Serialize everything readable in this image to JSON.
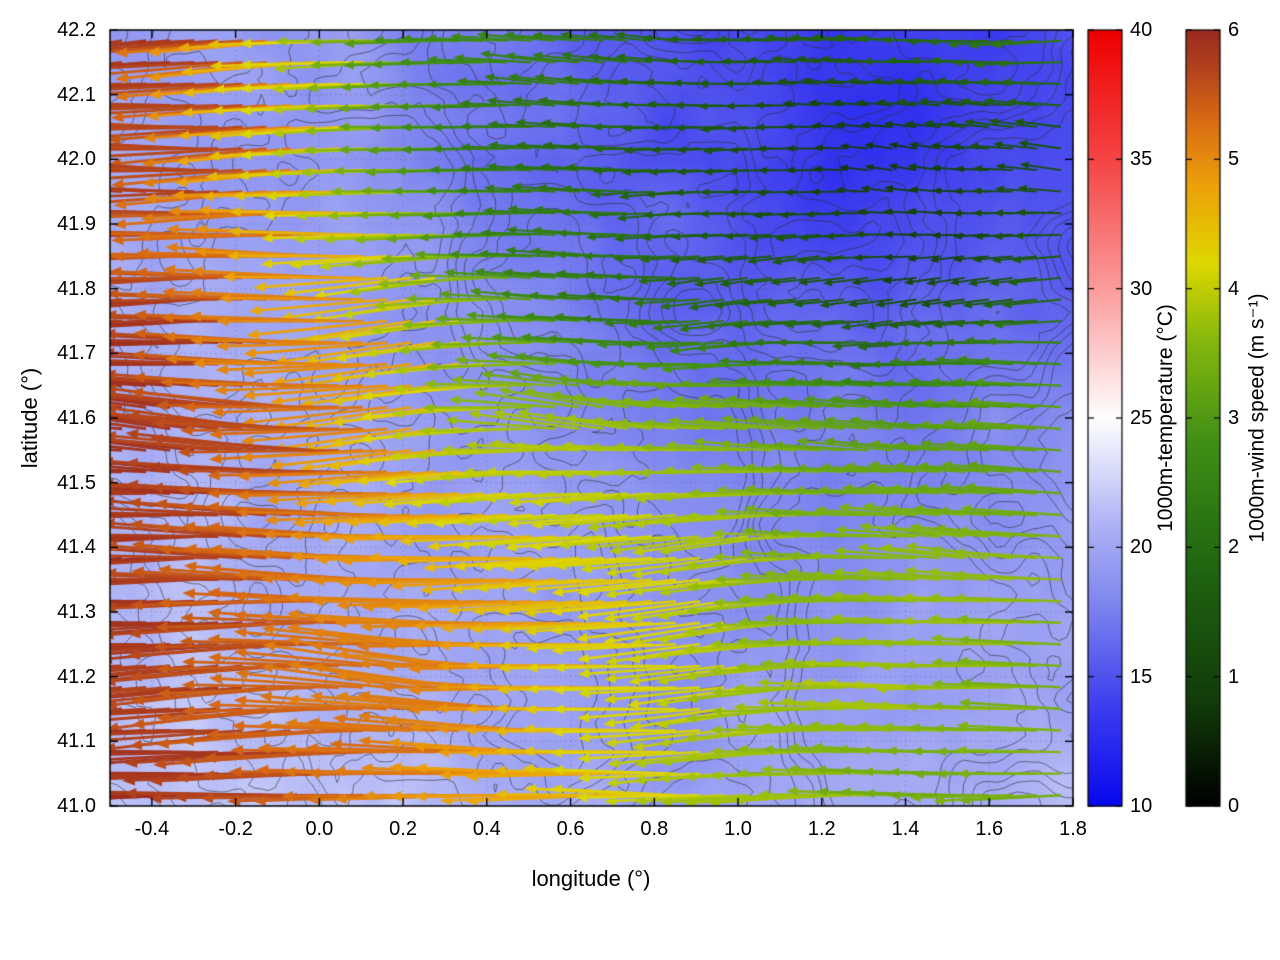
{
  "figure": {
    "background": "#ffffff",
    "plot_border_color": "#000000"
  },
  "chart_data": {
    "type": "heatmap",
    "subtype": "wind vector field over temperature shading with terrain contour lines",
    "title": "",
    "xlabel": "longitude (°)",
    "ylabel": "latitude (°)",
    "xlim": [
      -0.5,
      1.8
    ],
    "ylim": [
      41.0,
      42.2
    ],
    "grid": "faint dotted gridlines at tick positions",
    "legend": "two vertical colorbars on right side",
    "xticks": [
      {
        "value": -0.4,
        "label": "-0.4"
      },
      {
        "value": -0.2,
        "label": "-0.2"
      },
      {
        "value": 0.0,
        "label": "0.0"
      },
      {
        "value": 0.2,
        "label": "0.2"
      },
      {
        "value": 0.4,
        "label": "0.4"
      },
      {
        "value": 0.6,
        "label": "0.6"
      },
      {
        "value": 0.8,
        "label": "0.8"
      },
      {
        "value": 1.0,
        "label": "1.0"
      },
      {
        "value": 1.2,
        "label": "1.2"
      },
      {
        "value": 1.4,
        "label": "1.4"
      },
      {
        "value": 1.6,
        "label": "1.6"
      },
      {
        "value": 1.8,
        "label": "1.8"
      }
    ],
    "yticks": [
      {
        "value": 41.0,
        "label": "41.0"
      },
      {
        "value": 41.1,
        "label": "41.1"
      },
      {
        "value": 41.2,
        "label": "41.2"
      },
      {
        "value": 41.3,
        "label": "41.3"
      },
      {
        "value": 41.4,
        "label": "41.4"
      },
      {
        "value": 41.5,
        "label": "41.5"
      },
      {
        "value": 41.6,
        "label": "41.6"
      },
      {
        "value": 41.7,
        "label": "41.7"
      },
      {
        "value": 41.8,
        "label": "41.8"
      },
      {
        "value": 41.9,
        "label": "41.9"
      },
      {
        "value": 42.0,
        "label": "42.0"
      },
      {
        "value": 42.1,
        "label": "42.1"
      },
      {
        "value": 42.2,
        "label": "42.2"
      }
    ],
    "temperature": {
      "label": "1000m-temperature (°C)",
      "range": [
        10,
        40
      ],
      "cticks": [
        {
          "value": 10,
          "label": "10"
        },
        {
          "value": 15,
          "label": "15"
        },
        {
          "value": 20,
          "label": "20"
        },
        {
          "value": 25,
          "label": "25"
        },
        {
          "value": 30,
          "label": "30"
        },
        {
          "value": 35,
          "label": "35"
        },
        {
          "value": 40,
          "label": "40"
        }
      ],
      "colormap": [
        {
          "v": 10,
          "c": "#0808f0"
        },
        {
          "v": 14,
          "c": "#4040ee"
        },
        {
          "v": 18,
          "c": "#8289ef"
        },
        {
          "v": 21,
          "c": "#b0b5f5"
        },
        {
          "v": 23,
          "c": "#d9dcfa"
        },
        {
          "v": 25,
          "c": "#ffffff"
        },
        {
          "v": 30,
          "c": "#fc9c9c"
        },
        {
          "v": 35,
          "c": "#f54545"
        },
        {
          "v": 40,
          "c": "#ee0000"
        }
      ],
      "grid_rows_north_to_south": [
        [
          20.0,
          20.0,
          19.5,
          18.5,
          17.5,
          17.0,
          16.0,
          15.0,
          14.5,
          14.0,
          13.5,
          13.5,
          14.0
        ],
        [
          20.0,
          20.0,
          19.5,
          18.5,
          17.5,
          16.5,
          15.5,
          15.0,
          14.0,
          13.5,
          13.5,
          14.0,
          14.5
        ],
        [
          20.5,
          20.5,
          20.0,
          19.5,
          19.0,
          18.0,
          17.0,
          16.0,
          15.5,
          15.0,
          15.0,
          15.5,
          16.0
        ],
        [
          20.5,
          20.5,
          20.5,
          20.0,
          19.5,
          19.0,
          18.5,
          18.0,
          17.5,
          17.5,
          17.5,
          18.0,
          18.5
        ],
        [
          21.0,
          21.0,
          20.5,
          20.5,
          20.0,
          19.5,
          19.0,
          18.5,
          18.5,
          18.5,
          19.0,
          19.0,
          19.5
        ],
        [
          21.0,
          21.5,
          21.0,
          20.5,
          20.5,
          20.0,
          19.5,
          19.0,
          19.0,
          19.5,
          19.5,
          20.0,
          20.0
        ],
        [
          21.5,
          22.0,
          21.5,
          21.0,
          21.0,
          20.5,
          20.0,
          19.5,
          20.0,
          20.0,
          20.5,
          20.5,
          21.0
        ]
      ]
    },
    "wind": {
      "label": "1000m-wind speed (m s⁻¹)",
      "range": [
        0,
        6
      ],
      "direction": "arrows point westward (easterly flow), strongest in the west/southwest",
      "cticks": [
        {
          "value": 0,
          "label": "0"
        },
        {
          "value": 1,
          "label": "1"
        },
        {
          "value": 2,
          "label": "2"
        },
        {
          "value": 3,
          "label": "3"
        },
        {
          "value": 4,
          "label": "4"
        },
        {
          "value": 5,
          "label": "5"
        },
        {
          "value": 6,
          "label": "6"
        }
      ],
      "colormap": [
        {
          "v": 0,
          "c": "#000000"
        },
        {
          "v": 0.8,
          "c": "#123c0a"
        },
        {
          "v": 1.8,
          "c": "#1f6410"
        },
        {
          "v": 2.8,
          "c": "#3f8f16"
        },
        {
          "v": 3.6,
          "c": "#86b80e"
        },
        {
          "v": 4.2,
          "c": "#ded800"
        },
        {
          "v": 4.8,
          "c": "#eda10a"
        },
        {
          "v": 5.3,
          "c": "#d96c14"
        },
        {
          "v": 5.7,
          "c": "#b4431d"
        },
        {
          "v": 6,
          "c": "#9a2a20"
        }
      ],
      "speed_grid_north_to_south": [
        [
          5.8,
          5.7,
          5.3,
          4.4,
          3.2,
          2.6,
          2.2,
          1.9,
          1.7,
          1.6,
          1.7,
          2.0,
          2.3
        ],
        [
          5.8,
          5.7,
          5.4,
          4.6,
          3.4,
          2.6,
          2.1,
          1.7,
          1.3,
          1.0,
          0.8,
          0.9,
          1.2
        ],
        [
          5.8,
          5.8,
          5.5,
          5.0,
          4.2,
          3.4,
          2.6,
          2.0,
          1.6,
          1.3,
          1.2,
          1.4,
          1.8
        ],
        [
          5.9,
          5.8,
          5.6,
          5.2,
          4.6,
          4.1,
          3.8,
          3.6,
          3.4,
          3.2,
          3.1,
          3.1,
          3.2
        ],
        [
          5.9,
          5.8,
          5.7,
          5.4,
          5.0,
          4.5,
          4.1,
          3.9,
          3.8,
          3.7,
          3.6,
          3.5,
          3.5
        ],
        [
          5.9,
          5.9,
          5.8,
          5.6,
          5.3,
          5.1,
          4.8,
          4.4,
          4.0,
          3.8,
          3.7,
          3.6,
          3.5
        ],
        [
          5.8,
          5.8,
          5.7,
          5.6,
          5.4,
          5.2,
          4.9,
          4.4,
          4.0,
          3.8,
          3.6,
          3.5,
          3.4
        ]
      ]
    },
    "contours": {
      "description": "irregular gray terrain contour lines overlaid across the map",
      "color": "#2d2d32"
    }
  }
}
